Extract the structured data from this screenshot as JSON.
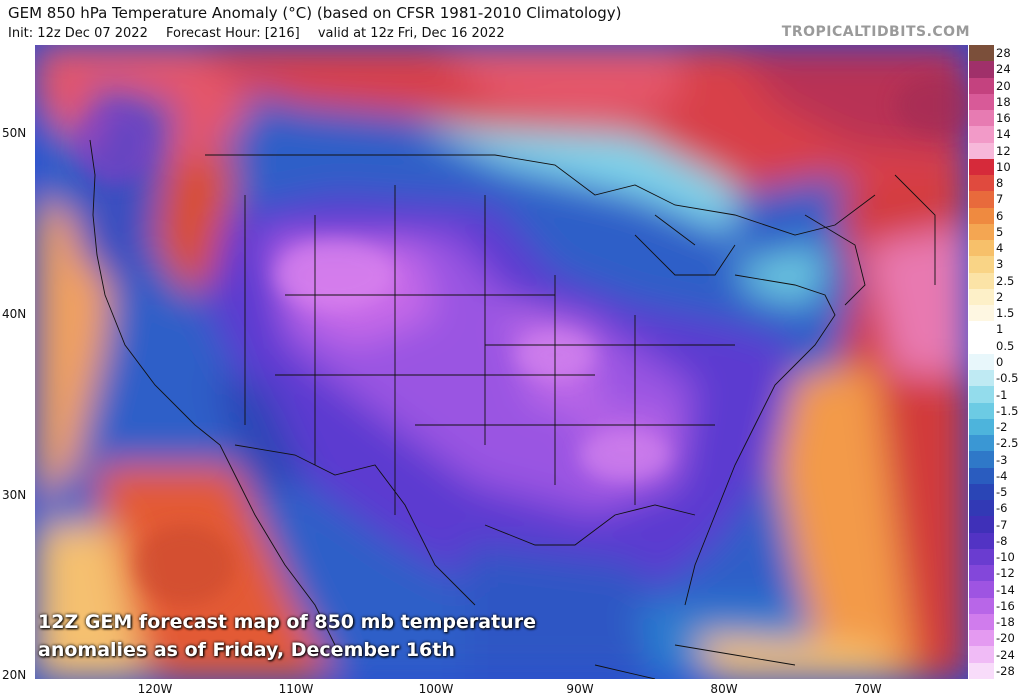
{
  "header": {
    "title": "GEM 850 hPa Temperature Anomaly (°C) (based on CFSR 1981-2010 Climatology)",
    "init": "Init: 12z Dec 07 2022",
    "forecast_hour": "Forecast Hour: [216]",
    "valid": "valid at 12z Fri, Dec 16 2022",
    "brand": "TROPICALTIDBITS.COM"
  },
  "axes": {
    "lat_labels": [
      "50N",
      "40N",
      "30N",
      "20N"
    ],
    "lon_labels": [
      "120W",
      "110W",
      "100W",
      "90W",
      "80W",
      "70W"
    ]
  },
  "colorbar": {
    "labels": [
      "28",
      "24",
      "20",
      "18",
      "16",
      "14",
      "12",
      "10",
      "8",
      "7",
      "6",
      "5",
      "4",
      "3",
      "2.5",
      "2",
      "1.5",
      "1",
      "0.5",
      "0",
      "-0.5",
      "-1",
      "-1.5",
      "-2",
      "-2.5",
      "-3",
      "-4",
      "-5",
      "-6",
      "-7",
      "-8",
      "-10",
      "-12",
      "-14",
      "-16",
      "-18",
      "-20",
      "-24",
      "-28"
    ],
    "colors": [
      "#7b4f3a",
      "#a0306a",
      "#c4427f",
      "#d85a98",
      "#e77bb2",
      "#f29ac8",
      "#f7b8da",
      "#d62a3a",
      "#e04a3e",
      "#e86a3c",
      "#ef8a40",
      "#f4a652",
      "#f7c06a",
      "#f9d486",
      "#fbe3a6",
      "#fdf0c8",
      "#fef7e2",
      "#ffffff",
      "#ffffff",
      "#e8f7fb",
      "#bfeaf3",
      "#93dcec",
      "#6ccbe4",
      "#4db4dc",
      "#3a97d4",
      "#2f78c8",
      "#2a5cbf",
      "#2a45b6",
      "#3239b5",
      "#3f30b8",
      "#5233c4",
      "#6a3cd0",
      "#8347da",
      "#9e54e2",
      "#b866e8",
      "#d07ced",
      "#e49af1",
      "#f0bbf6",
      "#f8dcfa"
    ]
  },
  "caption": {
    "line1": "12Z GEM forecast map of 850 mb temperature",
    "line2": "anomalies as of Friday, December 16th"
  }
}
